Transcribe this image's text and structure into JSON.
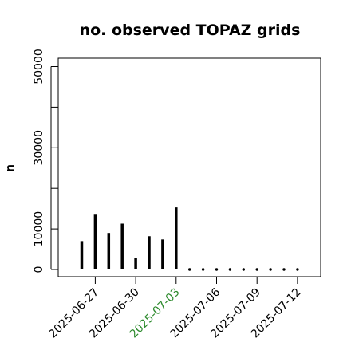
{
  "chart_data": {
    "type": "bar",
    "title": "no. observed TOPAZ grids",
    "xlabel": "",
    "ylabel": "n",
    "ylim": [
      0,
      52000
    ],
    "yticks": [
      0,
      10000,
      20000,
      30000,
      40000,
      50000
    ],
    "ytick_labels": [
      "0",
      "10000",
      "",
      "30000",
      "",
      "50000"
    ],
    "xticks": [
      "2025-06-27",
      "2025-06-30",
      "2025-07-03",
      "2025-07-06",
      "2025-07-09",
      "2025-07-12"
    ],
    "highlight_tick": "2025-07-03",
    "x": [
      "2025-06-26",
      "2025-06-27",
      "2025-06-28",
      "2025-06-29",
      "2025-06-30",
      "2025-07-01",
      "2025-07-02",
      "2025-07-03",
      "2025-07-04",
      "2025-07-05",
      "2025-07-06",
      "2025-07-07",
      "2025-07-08",
      "2025-07-09",
      "2025-07-10",
      "2025-07-11",
      "2025-07-12"
    ],
    "values": [
      7000,
      13500,
      9000,
      11300,
      2800,
      8200,
      7400,
      15300,
      0,
      0,
      0,
      0,
      0,
      0,
      0,
      0,
      0
    ],
    "grid": false
  },
  "colors": {
    "bar": "#000000",
    "axis": "#000000",
    "highlight": "#2e8b2e"
  }
}
